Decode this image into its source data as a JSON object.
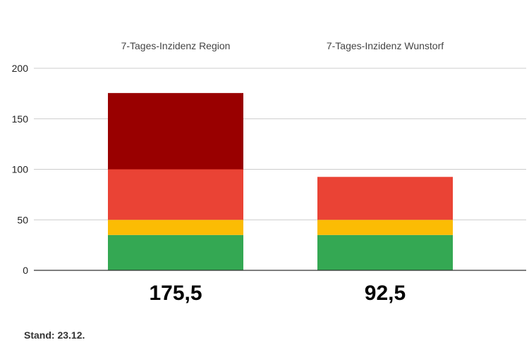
{
  "chart_data": {
    "type": "bar",
    "stacked": true,
    "categories": [
      "7-Tages-Inzidenz Region",
      "7-Tages-Inzidenz Wunstorf"
    ],
    "totals": [
      175.5,
      92.5
    ],
    "total_labels": [
      "175,5",
      "92,5"
    ],
    "segments": [
      {
        "color": "#34a853",
        "values": [
          35,
          35
        ]
      },
      {
        "color": "#fbbc04",
        "values": [
          15,
          15
        ]
      },
      {
        "color": "#ea4335",
        "values": [
          50,
          42.5
        ]
      },
      {
        "color": "#990000",
        "values": [
          75.5,
          0
        ]
      }
    ],
    "ylim": [
      0,
      200
    ],
    "yticks": [
      {
        "value": 0,
        "label": "0"
      },
      {
        "value": 50,
        "label": "50"
      },
      {
        "value": 100,
        "label": "100"
      },
      {
        "value": 150,
        "label": "150"
      },
      {
        "value": 200,
        "label": "200"
      }
    ],
    "grid": true,
    "gridline_color": "#cccccc",
    "axis_color": "#333333",
    "category_label_position": "top",
    "total_label_position": "bottom"
  },
  "footer": {
    "note": "Stand: 23.12."
  }
}
